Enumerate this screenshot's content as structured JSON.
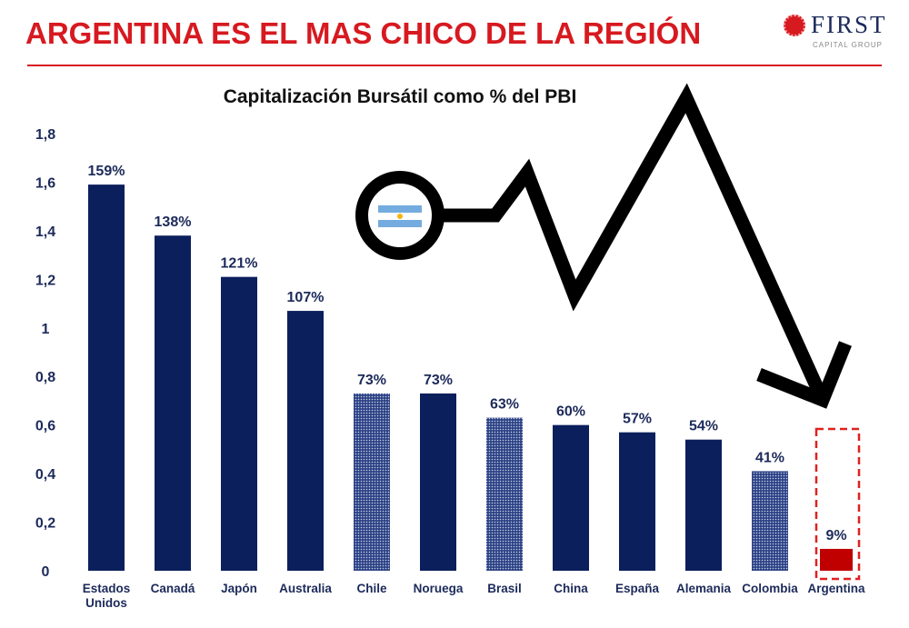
{
  "header": {
    "title": "ARGENTINA ES EL MAS CHICO DE LA REGIÓN",
    "logo_name": "FIRST",
    "logo_sub": "CAPITAL GROUP"
  },
  "colors": {
    "bar": "#0b1f5c",
    "pattern_bar": "#3a4f86",
    "highlight": "#c00000",
    "headline": "#d71920"
  },
  "chart_data": {
    "type": "bar",
    "title": "Capitalización Bursátil como % del PBI",
    "xlabel": "",
    "ylabel": "",
    "ylim": [
      0,
      1.8
    ],
    "yticks": [
      "0",
      "0,2",
      "0,4",
      "0,6",
      "0,8",
      "1",
      "1,2",
      "1,4",
      "1,6",
      "1,8"
    ],
    "grid": false,
    "categories": [
      "Estados Unidos",
      "Canadá",
      "Japón",
      "Australia",
      "Chile",
      "Noruega",
      "Brasil",
      "China",
      "España",
      "Alemania",
      "Colombia",
      "Argentina"
    ],
    "values": [
      1.59,
      1.38,
      1.21,
      1.07,
      0.73,
      0.73,
      0.63,
      0.6,
      0.57,
      0.54,
      0.41,
      0.09
    ],
    "labels": [
      "159%",
      "138%",
      "121%",
      "107%",
      "73%",
      "73%",
      "63%",
      "60%",
      "57%",
      "54%",
      "41%",
      "9%"
    ],
    "styles": [
      "solid",
      "solid",
      "solid",
      "solid",
      "pattern",
      "solid",
      "pattern",
      "solid",
      "solid",
      "solid",
      "pattern",
      "highlight"
    ],
    "annotations": [
      "Argentina flag with downward arrow",
      "Argentina highlighted with dashed red box"
    ]
  }
}
